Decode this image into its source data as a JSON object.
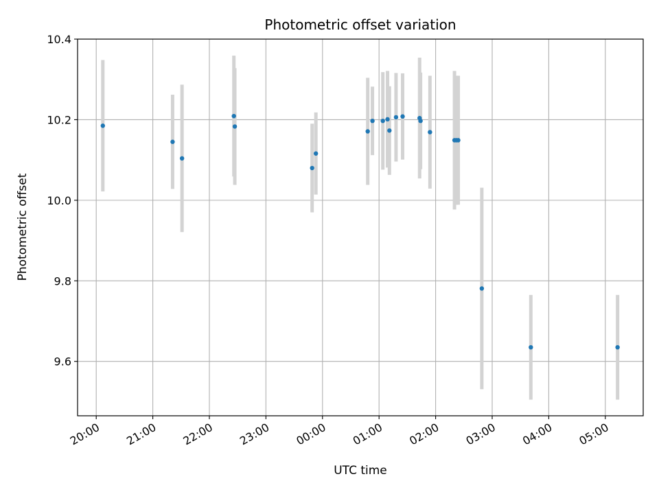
{
  "chart_data": {
    "type": "scatter",
    "title": "Photometric offset variation",
    "xlabel": "UTC time",
    "ylabel": "Photometric offset",
    "grid": true,
    "x_axis": {
      "unit": "hours since 20:00 UTC",
      "xlim": [
        -0.33,
        9.67
      ],
      "ticks": [
        {
          "value": 0,
          "label": "20:00"
        },
        {
          "value": 1,
          "label": "21:00"
        },
        {
          "value": 2,
          "label": "22:00"
        },
        {
          "value": 3,
          "label": "23:00"
        },
        {
          "value": 4,
          "label": "00:00"
        },
        {
          "value": 5,
          "label": "01:00"
        },
        {
          "value": 6,
          "label": "02:00"
        },
        {
          "value": 7,
          "label": "03:00"
        },
        {
          "value": 8,
          "label": "04:00"
        },
        {
          "value": 9,
          "label": "05:00"
        }
      ]
    },
    "y_axis": {
      "ylim": [
        9.465,
        10.4
      ],
      "ticks": [
        {
          "value": 9.6,
          "label": "9.6"
        },
        {
          "value": 9.8,
          "label": "9.8"
        },
        {
          "value": 10.0,
          "label": "10.0"
        },
        {
          "value": 10.2,
          "label": "10.2"
        },
        {
          "value": 10.4,
          "label": "10.4"
        }
      ]
    },
    "colors": {
      "point": "#1f77b4",
      "errorbar": "#d3d3d3",
      "grid": "#b0b0b0"
    },
    "series": [
      {
        "points": [
          {
            "time": "20:07",
            "y": 10.185,
            "yerr": 0.163
          },
          {
            "time": "21:21",
            "y": 10.145,
            "yerr": 0.117
          },
          {
            "time": "21:31",
            "y": 10.104,
            "yerr": 0.183
          },
          {
            "time": "22:26",
            "y": 10.209,
            "yerr": 0.15
          },
          {
            "time": "22:27",
            "y": 10.183,
            "yerr": 0.145
          },
          {
            "time": "23:49",
            "y": 10.08,
            "yerr": 0.11
          },
          {
            "time": "23:53",
            "y": 10.116,
            "yerr": 0.102
          },
          {
            "time": "00:48",
            "y": 10.171,
            "yerr": 0.133
          },
          {
            "time": "00:53",
            "y": 10.197,
            "yerr": 0.085
          },
          {
            "time": "01:04",
            "y": 10.197,
            "yerr": 0.121
          },
          {
            "time": "01:09",
            "y": 10.201,
            "yerr": 0.12
          },
          {
            "time": "01:11",
            "y": 10.173,
            "yerr": 0.11
          },
          {
            "time": "01:18",
            "y": 10.206,
            "yerr": 0.11
          },
          {
            "time": "01:25",
            "y": 10.208,
            "yerr": 0.107
          },
          {
            "time": "01:43",
            "y": 10.204,
            "yerr": 0.15
          },
          {
            "time": "01:44",
            "y": 10.197,
            "yerr": 0.12
          },
          {
            "time": "01:54",
            "y": 10.169,
            "yerr": 0.14
          },
          {
            "time": "02:20",
            "y": 10.149,
            "yerr": 0.172
          },
          {
            "time": "02:22",
            "y": 10.149,
            "yerr": 0.16
          },
          {
            "time": "02:24",
            "y": 10.149,
            "yerr": 0.16
          },
          {
            "time": "02:49",
            "y": 9.781,
            "yerr": 0.25
          },
          {
            "time": "03:41",
            "y": 9.635,
            "yerr": 0.13
          },
          {
            "time": "05:13",
            "y": 9.635,
            "yerr": 0.13
          }
        ]
      }
    ]
  }
}
